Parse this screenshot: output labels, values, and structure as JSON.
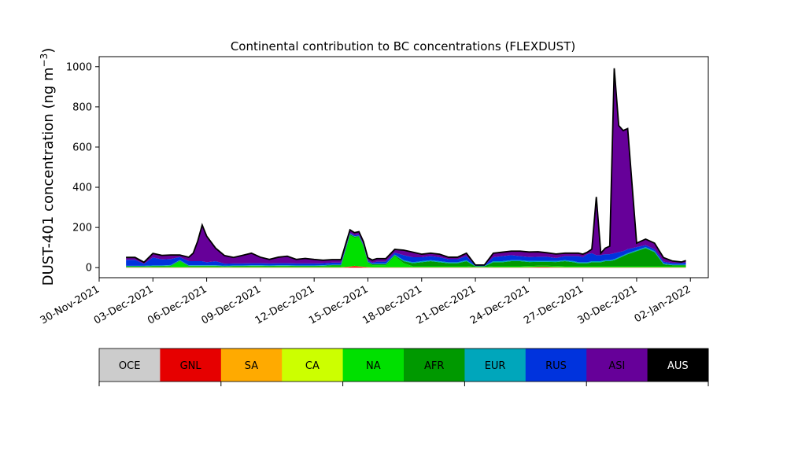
{
  "chart_data": {
    "type": "area",
    "title": "Continental contribution to BC concentrations (FLEXDUST)",
    "ylabel": "DUST-401 concentration (ng m",
    "ylabel_sup": "−3",
    "ylabel_close": ")",
    "xlabel": "",
    "ylim": [
      -50,
      1050
    ],
    "yticks": [
      0,
      200,
      400,
      600,
      800,
      1000
    ],
    "ytick_labels": [
      "0",
      "200",
      "400",
      "600",
      "800",
      "1000"
    ],
    "x_range_days": [
      "2021-11-30",
      "2022-01-03"
    ],
    "xticks": [
      "2021-11-30",
      "2021-12-03",
      "2021-12-06",
      "2021-12-09",
      "2021-12-12",
      "2021-12-15",
      "2021-12-18",
      "2021-12-21",
      "2021-12-24",
      "2021-12-27",
      "2021-12-30",
      "2022-01-02"
    ],
    "xtick_labels": [
      "30-Nov-2021",
      "03-Dec-2021",
      "06-Dec-2021",
      "09-Dec-2021",
      "12-Dec-2021",
      "15-Dec-2021",
      "18-Dec-2021",
      "21-Dec-2021",
      "24-Dec-2021",
      "27-Dec-2021",
      "30-Dec-2021",
      "02-Jan-2022"
    ],
    "x": [
      "2021-12-01 12:00",
      "2021-12-02 00:00",
      "2021-12-02 12:00",
      "2021-12-03 00:00",
      "2021-12-03 12:00",
      "2021-12-04 00:00",
      "2021-12-04 12:00",
      "2021-12-05 00:00",
      "2021-12-05 06:00",
      "2021-12-05 12:00",
      "2021-12-05 18:00",
      "2021-12-06 00:00",
      "2021-12-06 12:00",
      "2021-12-07 00:00",
      "2021-12-07 12:00",
      "2021-12-08 00:00",
      "2021-12-08 12:00",
      "2021-12-09 00:00",
      "2021-12-09 12:00",
      "2021-12-10 00:00",
      "2021-12-10 12:00",
      "2021-12-11 00:00",
      "2021-12-11 12:00",
      "2021-12-12 00:00",
      "2021-12-12 12:00",
      "2021-12-13 00:00",
      "2021-12-13 12:00",
      "2021-12-14 00:00",
      "2021-12-14 06:00",
      "2021-12-14 12:00",
      "2021-12-14 18:00",
      "2021-12-15 00:00",
      "2021-12-15 06:00",
      "2021-12-15 12:00",
      "2021-12-16 00:00",
      "2021-12-16 12:00",
      "2021-12-17 00:00",
      "2021-12-17 12:00",
      "2021-12-18 00:00",
      "2021-12-18 12:00",
      "2021-12-19 00:00",
      "2021-12-19 12:00",
      "2021-12-20 00:00",
      "2021-12-20 12:00",
      "2021-12-21 00:00",
      "2021-12-21 12:00",
      "2021-12-22 00:00",
      "2021-12-22 12:00",
      "2021-12-23 00:00",
      "2021-12-23 12:00",
      "2021-12-24 00:00",
      "2021-12-24 12:00",
      "2021-12-25 00:00",
      "2021-12-25 12:00",
      "2021-12-26 00:00",
      "2021-12-26 12:00",
      "2021-12-26 18:00",
      "2021-12-27 00:00",
      "2021-12-27 06:00",
      "2021-12-27 12:00",
      "2021-12-27 18:00",
      "2021-12-28 00:00",
      "2021-12-28 06:00",
      "2021-12-28 12:00",
      "2021-12-28 18:00",
      "2021-12-29 00:00",
      "2021-12-29 06:00",
      "2021-12-29 12:00",
      "2021-12-30 00:00",
      "2021-12-30 12:00",
      "2021-12-31 00:00",
      "2021-12-31 12:00",
      "2022-01-01 00:00",
      "2022-01-01 12:00",
      "2022-01-01 18:00"
    ],
    "series": [
      {
        "name": "OCE",
        "color": "#cccccc",
        "values": [
          0,
          0,
          0,
          0,
          0,
          0,
          0,
          0,
          0,
          0,
          0,
          0,
          0,
          0,
          0,
          0,
          0,
          0,
          0,
          0,
          0,
          0,
          0,
          0,
          0,
          0,
          0,
          0,
          0,
          0,
          0,
          0,
          0,
          0,
          0,
          0,
          0,
          0,
          0,
          0,
          0,
          0,
          0,
          0,
          0,
          0,
          0,
          0,
          0,
          0,
          0,
          0,
          0,
          0,
          0,
          0,
          0,
          0,
          0,
          0,
          0,
          0,
          0,
          0,
          0,
          0,
          0,
          0,
          0,
          0,
          0,
          0,
          0,
          0,
          0
        ]
      },
      {
        "name": "GNL",
        "color": "#e60000",
        "values": [
          1,
          1,
          1,
          1,
          1,
          1,
          1,
          1,
          1,
          1,
          1,
          1,
          1,
          1,
          1,
          1,
          1,
          1,
          1,
          1,
          1,
          1,
          1,
          1,
          1,
          1,
          1,
          5,
          8,
          6,
          4,
          2,
          1,
          1,
          1,
          1,
          1,
          1,
          1,
          1,
          1,
          1,
          1,
          1,
          1,
          1,
          1,
          1,
          1,
          1,
          2,
          3,
          3,
          2,
          1,
          1,
          1,
          1,
          1,
          1,
          1,
          1,
          1,
          1,
          1,
          1,
          1,
          1,
          1,
          1,
          1,
          1,
          1,
          1,
          1
        ]
      },
      {
        "name": "SA",
        "color": "#ffaa00",
        "values": [
          0,
          0,
          0,
          0,
          0,
          0,
          0,
          0,
          0,
          0,
          0,
          0,
          0,
          0,
          0,
          0,
          0,
          0,
          0,
          0,
          0,
          0,
          0,
          0,
          0,
          0,
          0,
          0,
          0,
          0,
          0,
          0,
          0,
          0,
          0,
          0,
          0,
          0,
          0,
          0,
          0,
          0,
          0,
          0,
          0,
          0,
          0,
          0,
          0,
          0,
          0,
          0,
          0,
          0,
          0,
          0,
          0,
          0,
          0,
          0,
          0,
          0,
          0,
          0,
          0,
          0,
          0,
          0,
          0,
          0,
          0,
          0,
          0,
          0,
          0
        ]
      },
      {
        "name": "CA",
        "color": "#ccff00",
        "values": [
          1,
          1,
          1,
          1,
          1,
          1,
          1,
          1,
          1,
          1,
          1,
          1,
          1,
          1,
          1,
          1,
          1,
          1,
          1,
          1,
          1,
          1,
          1,
          1,
          1,
          1,
          1,
          1,
          1,
          1,
          1,
          1,
          1,
          1,
          1,
          1,
          1,
          1,
          1,
          1,
          1,
          1,
          1,
          1,
          1,
          1,
          1,
          1,
          1,
          1,
          1,
          1,
          1,
          1,
          1,
          1,
          1,
          1,
          1,
          1,
          1,
          1,
          1,
          1,
          1,
          1,
          1,
          1,
          1,
          1,
          1,
          1,
          1,
          1,
          1
        ]
      },
      {
        "name": "NA",
        "color": "#00e000",
        "values": [
          2,
          2,
          2,
          3,
          3,
          5,
          30,
          4,
          4,
          4,
          4,
          4,
          4,
          2,
          3,
          3,
          4,
          4,
          3,
          4,
          4,
          3,
          3,
          3,
          4,
          5,
          5,
          155,
          140,
          145,
          100,
          20,
          10,
          10,
          10,
          55,
          20,
          5,
          5,
          5,
          5,
          5,
          5,
          5,
          2,
          2,
          5,
          5,
          5,
          5,
          5,
          5,
          5,
          5,
          5,
          5,
          5,
          5,
          5,
          5,
          5,
          5,
          5,
          5,
          5,
          5,
          5,
          5,
          5,
          5,
          5,
          5,
          5,
          5,
          5
        ]
      },
      {
        "name": "AFR",
        "color": "#009900",
        "values": [
          3,
          3,
          3,
          3,
          3,
          3,
          3,
          3,
          3,
          3,
          3,
          3,
          3,
          3,
          3,
          3,
          3,
          3,
          3,
          3,
          3,
          3,
          3,
          3,
          3,
          5,
          5,
          5,
          5,
          5,
          5,
          5,
          5,
          5,
          5,
          5,
          10,
          15,
          20,
          25,
          20,
          15,
          15,
          25,
          3,
          3,
          20,
          20,
          25,
          25,
          20,
          20,
          20,
          20,
          25,
          20,
          15,
          15,
          15,
          20,
          20,
          20,
          25,
          25,
          30,
          40,
          50,
          60,
          75,
          90,
          70,
          10,
          5,
          5,
          5
        ]
      },
      {
        "name": "EUR",
        "color": "#00a6bb",
        "values": [
          2,
          2,
          2,
          3,
          3,
          3,
          3,
          3,
          3,
          3,
          3,
          3,
          3,
          3,
          3,
          3,
          3,
          3,
          3,
          3,
          3,
          3,
          3,
          3,
          3,
          3,
          3,
          2,
          2,
          2,
          2,
          2,
          2,
          3,
          3,
          3,
          5,
          5,
          5,
          5,
          5,
          5,
          5,
          5,
          1,
          1,
          5,
          5,
          5,
          5,
          5,
          5,
          5,
          5,
          5,
          5,
          5,
          5,
          5,
          5,
          5,
          5,
          5,
          5,
          5,
          5,
          5,
          5,
          5,
          5,
          5,
          5,
          3,
          3,
          3
        ]
      },
      {
        "name": "RUS",
        "color": "#0033dd",
        "values": [
          30,
          30,
          10,
          40,
          30,
          30,
          15,
          20,
          20,
          20,
          20,
          15,
          20,
          10,
          10,
          10,
          10,
          10,
          10,
          10,
          10,
          10,
          10,
          10,
          10,
          10,
          10,
          5,
          5,
          5,
          5,
          5,
          5,
          10,
          10,
          10,
          25,
          25,
          20,
          20,
          20,
          15,
          15,
          20,
          3,
          3,
          20,
          25,
          25,
          20,
          20,
          20,
          20,
          15,
          20,
          25,
          30,
          25,
          40,
          40,
          30,
          30,
          30,
          30,
          30,
          25,
          20,
          20,
          15,
          10,
          10,
          8,
          8,
          8,
          10
        ]
      },
      {
        "name": "ASI",
        "color": "#660099",
        "values": [
          12,
          12,
          8,
          20,
          20,
          20,
          10,
          20,
          40,
          100,
          180,
          130,
          65,
          40,
          30,
          40,
          50,
          30,
          20,
          30,
          35,
          20,
          25,
          20,
          15,
          15,
          15,
          15,
          13,
          15,
          13,
          14,
          14,
          15,
          15,
          16,
          25,
          25,
          15,
          15,
          15,
          10,
          10,
          15,
          2,
          2,
          20,
          20,
          20,
          25,
          25,
          25,
          20,
          20,
          15,
          15,
          15,
          15,
          10,
          20,
          290,
          10,
          30,
          40,
          920,
          630,
          600,
          600,
          20,
          30,
          30,
          20,
          10,
          5,
          10
        ]
      },
      {
        "name": "AUS",
        "color": "#000000",
        "values": [
          0,
          0,
          0,
          0,
          0,
          0,
          0,
          0,
          0,
          0,
          0,
          0,
          0,
          0,
          0,
          0,
          0,
          0,
          0,
          0,
          0,
          0,
          0,
          0,
          0,
          0,
          0,
          0,
          0,
          0,
          0,
          0,
          0,
          0,
          0,
          0,
          0,
          0,
          0,
          0,
          0,
          0,
          0,
          0,
          0,
          0,
          0,
          0,
          0,
          0,
          0,
          0,
          0,
          0,
          0,
          0,
          0,
          0,
          0,
          0,
          0,
          0,
          0,
          0,
          0,
          0,
          0,
          0,
          0,
          0,
          0,
          0,
          0,
          0,
          0
        ]
      }
    ]
  }
}
